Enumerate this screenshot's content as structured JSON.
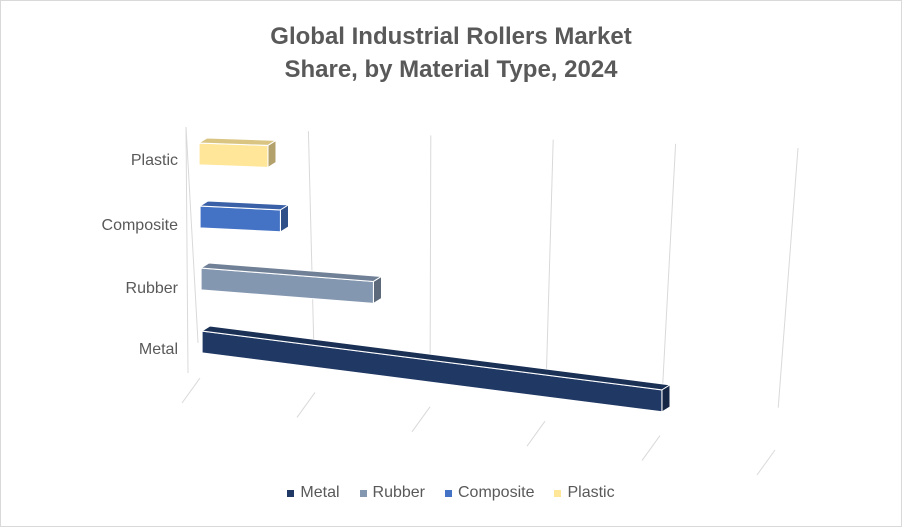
{
  "chart_data": {
    "type": "bar",
    "orientation": "horizontal",
    "style": "3d-perspective",
    "title_lines": [
      "Global Industrial Rollers Market",
      "Share, by Material Type, 2024"
    ],
    "categories": [
      "Metal",
      "Rubber",
      "Composite",
      "Plastic"
    ],
    "values": [
      4.0,
      1.5,
      0.7,
      0.6
    ],
    "series_colors": [
      "#203864",
      "#8497B0",
      "#4472C4",
      "#FFE699"
    ],
    "xlim": [
      0,
      5
    ],
    "tick_labels_shown": false,
    "grid": true,
    "legend": {
      "placement": "bottom",
      "entries": [
        {
          "label": "Metal",
          "color": "#203864"
        },
        {
          "label": "Rubber",
          "color": "#8497B0"
        },
        {
          "label": "Composite",
          "color": "#4472C4"
        },
        {
          "label": "Plastic",
          "color": "#FFE699"
        }
      ]
    }
  }
}
